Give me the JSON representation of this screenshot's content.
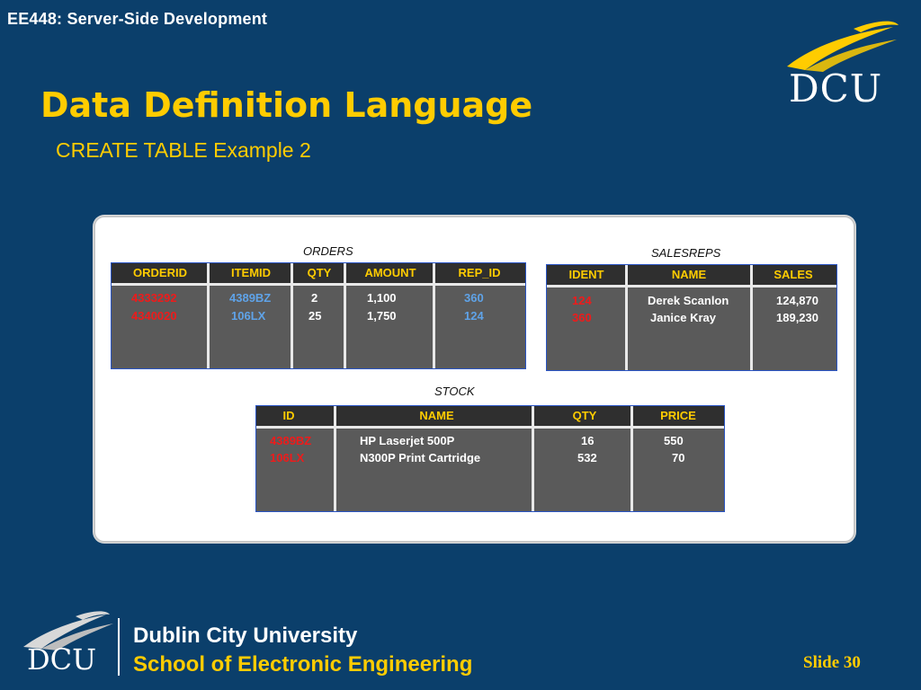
{
  "header": {
    "course": "EE448: Server-Side Development",
    "logo_text": "DCU"
  },
  "slide": {
    "title": "Data Definition Language",
    "subtitle": "CREATE TABLE Example 2"
  },
  "tables": {
    "orders": {
      "label": "ORDERS",
      "headers": [
        "ORDERID",
        "ITEMID",
        "QTY",
        "AMOUNT",
        "REP_ID"
      ],
      "rows": [
        [
          "4333292",
          "4389BZ",
          "2",
          "1,100",
          "360"
        ],
        [
          "4340020",
          "106LX",
          "25",
          "1,750",
          "124"
        ]
      ]
    },
    "salesreps": {
      "label": "SALESREPS",
      "headers": [
        "IDENT",
        "NAME",
        "SALES"
      ],
      "rows": [
        [
          "124",
          "Derek Scanlon",
          "124,870"
        ],
        [
          "360",
          "Janice Kray",
          "189,230"
        ]
      ]
    },
    "stock": {
      "label": "STOCK",
      "headers": [
        "ID",
        "NAME",
        "QTY",
        "PRICE"
      ],
      "rows": [
        [
          "4389BZ",
          "HP Laserjet 500P",
          "16",
          "550"
        ],
        [
          "106LX",
          "N300P Print Cartridge",
          "532",
          "70"
        ]
      ]
    }
  },
  "colors": {
    "background": "#0b3f6b",
    "accent": "#ffcc00",
    "key_red": "#ee1b1b",
    "foreign_blue": "#5fa3e8"
  },
  "footer": {
    "logo_text": "DCU",
    "university": "Dublin City University",
    "school": "School of Electronic Engineering",
    "slide_label": "Slide 30"
  }
}
